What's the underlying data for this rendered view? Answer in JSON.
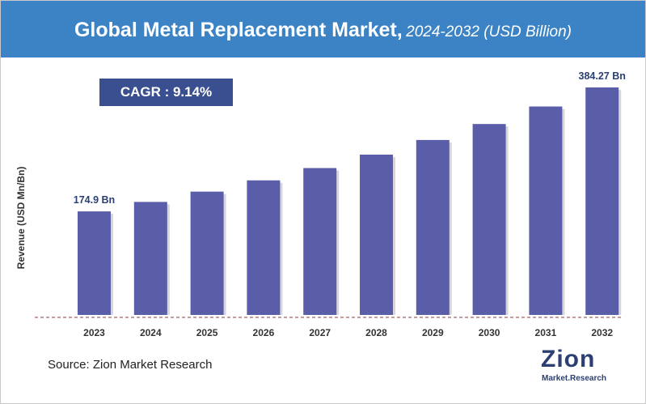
{
  "header": {
    "title_main": "Global Metal Replacement Market,",
    "title_sub": "2024-2032 (USD Billion)"
  },
  "cagr_label": "CAGR : 9.14%",
  "source": "Source: Zion Market Research",
  "logo": {
    "text_main": "Zion",
    "text_sub": "Market.Research"
  },
  "colors": {
    "header": "#3b83c4",
    "bar": "#5a5ea8",
    "cagr_box": "#3a4f8f",
    "baseline": "#8b3a3a"
  },
  "chart_data": {
    "type": "bar",
    "title": "Global Metal Replacement Market, 2024-2032 (USD Billion)",
    "xlabel": "",
    "ylabel": "Revenue (USD Mn/Bn)",
    "categories": [
      "2023",
      "2024",
      "2025",
      "2026",
      "2027",
      "2028",
      "2029",
      "2030",
      "2031",
      "2032"
    ],
    "values": [
      174.9,
      190.9,
      208.3,
      227.3,
      248.1,
      270.8,
      295.5,
      322.5,
      352.1,
      384.27
    ],
    "data_labels": [
      {
        "category": "2023",
        "text": "174.9 Bn"
      },
      {
        "category": "2032",
        "text": "384.27 Bn"
      }
    ],
    "ylim": [
      0,
      384.27
    ],
    "grid": false,
    "legend": "none"
  }
}
